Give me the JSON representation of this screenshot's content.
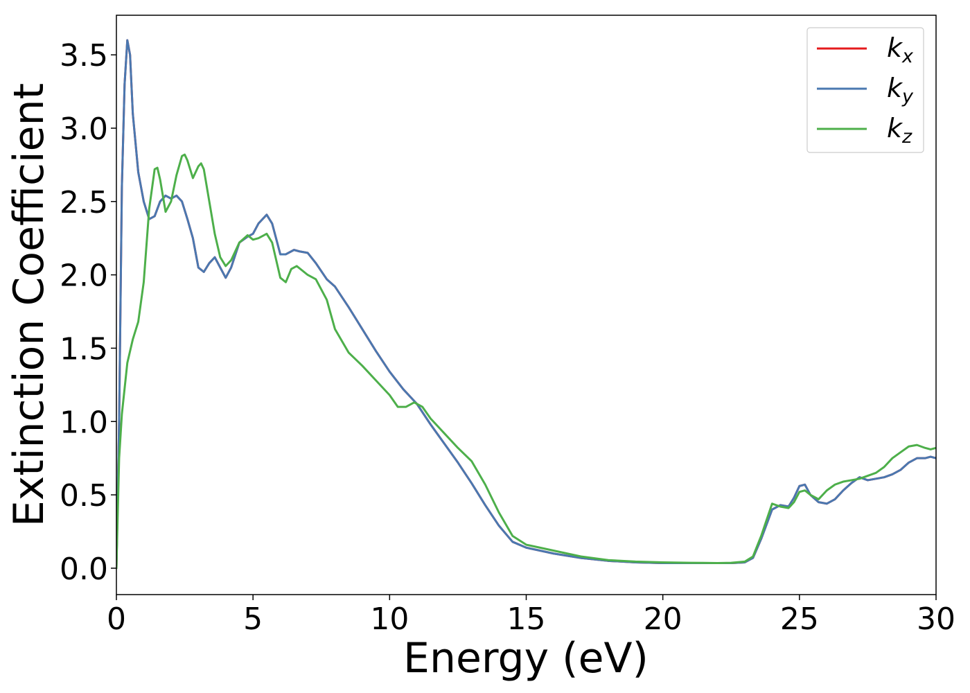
{
  "chart_data": {
    "type": "line",
    "title": "",
    "xlabel": "Energy (eV)",
    "ylabel": "Extinction Coefficient",
    "xlim": [
      0,
      30
    ],
    "ylim": [
      -0.18,
      3.77
    ],
    "xticks": [
      0,
      5,
      10,
      15,
      20,
      25,
      30
    ],
    "xtick_labels": [
      "0",
      "5",
      "10",
      "15",
      "20",
      "25",
      "30"
    ],
    "yticks": [
      0.0,
      0.5,
      1.0,
      1.5,
      2.0,
      2.5,
      3.0,
      3.5
    ],
    "ytick_labels": [
      "0.0",
      "0.5",
      "1.0",
      "1.5",
      "2.0",
      "2.5",
      "3.0",
      "3.5"
    ],
    "grid": false,
    "legend_position": "top-right",
    "series": [
      {
        "name": "k",
        "subscript": "x",
        "color": "#e41a1c",
        "x": [
          0,
          0.1,
          0.2,
          0.3,
          0.4,
          0.5,
          0.6,
          0.8,
          1.0,
          1.2,
          1.4,
          1.6,
          1.8,
          2.0,
          2.2,
          2.4,
          2.6,
          2.8,
          3.0,
          3.2,
          3.4,
          3.6,
          3.8,
          4.0,
          4.2,
          4.5,
          4.8,
          5.0,
          5.2,
          5.5,
          5.7,
          6.0,
          6.2,
          6.5,
          6.7,
          7.0,
          7.3,
          7.7,
          8.0,
          8.5,
          9.0,
          9.5,
          10.0,
          10.5,
          11.0,
          11.5,
          12.0,
          12.5,
          13.0,
          13.5,
          14.0,
          14.5,
          15.0,
          15.5,
          16.0,
          17.0,
          18.0,
          19.0,
          20.0,
          21.0,
          22.0,
          22.5,
          23.0,
          23.3,
          23.6,
          24.0,
          24.3,
          24.6,
          24.8,
          25.0,
          25.2,
          25.4,
          25.7,
          26.0,
          26.3,
          26.6,
          26.9,
          27.2,
          27.5,
          27.8,
          28.1,
          28.4,
          28.7,
          29.0,
          29.3,
          29.6,
          29.8,
          30.0
        ],
        "values": [
          0.0,
          1.0,
          2.6,
          3.3,
          3.6,
          3.5,
          3.1,
          2.7,
          2.5,
          2.38,
          2.4,
          2.5,
          2.54,
          2.52,
          2.54,
          2.5,
          2.38,
          2.25,
          2.05,
          2.02,
          2.08,
          2.12,
          2.05,
          1.98,
          2.05,
          2.22,
          2.26,
          2.28,
          2.35,
          2.41,
          2.35,
          2.14,
          2.14,
          2.17,
          2.16,
          2.15,
          2.08,
          1.97,
          1.92,
          1.78,
          1.63,
          1.48,
          1.34,
          1.22,
          1.12,
          0.98,
          0.85,
          0.72,
          0.58,
          0.43,
          0.29,
          0.18,
          0.14,
          0.12,
          0.1,
          0.07,
          0.05,
          0.04,
          0.035,
          0.035,
          0.035,
          0.035,
          0.04,
          0.07,
          0.2,
          0.4,
          0.43,
          0.42,
          0.48,
          0.56,
          0.57,
          0.5,
          0.45,
          0.44,
          0.47,
          0.53,
          0.58,
          0.62,
          0.6,
          0.61,
          0.62,
          0.64,
          0.67,
          0.72,
          0.75,
          0.75,
          0.76,
          0.75
        ]
      },
      {
        "name": "k",
        "subscript": "y",
        "color": "#4a78b0",
        "x": [
          0,
          0.1,
          0.2,
          0.3,
          0.4,
          0.5,
          0.6,
          0.8,
          1.0,
          1.2,
          1.4,
          1.6,
          1.8,
          2.0,
          2.2,
          2.4,
          2.6,
          2.8,
          3.0,
          3.2,
          3.4,
          3.6,
          3.8,
          4.0,
          4.2,
          4.5,
          4.8,
          5.0,
          5.2,
          5.5,
          5.7,
          6.0,
          6.2,
          6.5,
          6.7,
          7.0,
          7.3,
          7.7,
          8.0,
          8.5,
          9.0,
          9.5,
          10.0,
          10.5,
          11.0,
          11.5,
          12.0,
          12.5,
          13.0,
          13.5,
          14.0,
          14.5,
          15.0,
          15.5,
          16.0,
          17.0,
          18.0,
          19.0,
          20.0,
          21.0,
          22.0,
          22.5,
          23.0,
          23.3,
          23.6,
          24.0,
          24.3,
          24.6,
          24.8,
          25.0,
          25.2,
          25.4,
          25.7,
          26.0,
          26.3,
          26.6,
          26.9,
          27.2,
          27.5,
          27.8,
          28.1,
          28.4,
          28.7,
          29.0,
          29.3,
          29.6,
          29.8,
          30.0
        ],
        "values": [
          0.0,
          1.0,
          2.6,
          3.3,
          3.6,
          3.5,
          3.1,
          2.7,
          2.5,
          2.38,
          2.4,
          2.5,
          2.54,
          2.52,
          2.54,
          2.5,
          2.38,
          2.25,
          2.05,
          2.02,
          2.08,
          2.12,
          2.05,
          1.98,
          2.05,
          2.22,
          2.26,
          2.28,
          2.35,
          2.41,
          2.35,
          2.14,
          2.14,
          2.17,
          2.16,
          2.15,
          2.08,
          1.97,
          1.92,
          1.78,
          1.63,
          1.48,
          1.34,
          1.22,
          1.12,
          0.98,
          0.85,
          0.72,
          0.58,
          0.43,
          0.29,
          0.18,
          0.14,
          0.12,
          0.1,
          0.07,
          0.05,
          0.04,
          0.035,
          0.035,
          0.035,
          0.035,
          0.04,
          0.07,
          0.2,
          0.4,
          0.43,
          0.42,
          0.48,
          0.56,
          0.57,
          0.5,
          0.45,
          0.44,
          0.47,
          0.53,
          0.58,
          0.62,
          0.6,
          0.61,
          0.62,
          0.64,
          0.67,
          0.72,
          0.75,
          0.75,
          0.76,
          0.75
        ]
      },
      {
        "name": "k",
        "subscript": "z",
        "color": "#4daf4a",
        "x": [
          0,
          0.1,
          0.2,
          0.4,
          0.6,
          0.8,
          1.0,
          1.2,
          1.4,
          1.5,
          1.6,
          1.8,
          2.0,
          2.2,
          2.4,
          2.5,
          2.6,
          2.8,
          3.0,
          3.1,
          3.2,
          3.4,
          3.6,
          3.8,
          4.0,
          4.2,
          4.5,
          4.8,
          5.0,
          5.2,
          5.5,
          5.7,
          6.0,
          6.2,
          6.4,
          6.6,
          6.8,
          7.0,
          7.3,
          7.7,
          8.0,
          8.5,
          9.0,
          9.5,
          10.0,
          10.3,
          10.6,
          10.9,
          11.2,
          11.5,
          12.0,
          12.5,
          13.0,
          13.5,
          14.0,
          14.5,
          15.0,
          15.5,
          16.0,
          17.0,
          18.0,
          19.0,
          20.0,
          21.0,
          22.0,
          22.5,
          23.0,
          23.3,
          23.6,
          24.0,
          24.3,
          24.6,
          24.8,
          25.0,
          25.2,
          25.4,
          25.7,
          26.0,
          26.3,
          26.6,
          26.9,
          27.2,
          27.5,
          27.8,
          28.1,
          28.4,
          28.7,
          29.0,
          29.3,
          29.6,
          29.8,
          30.0
        ],
        "values": [
          0.0,
          0.75,
          1.05,
          1.4,
          1.56,
          1.68,
          1.95,
          2.45,
          2.72,
          2.73,
          2.65,
          2.43,
          2.5,
          2.68,
          2.81,
          2.82,
          2.78,
          2.66,
          2.74,
          2.76,
          2.72,
          2.5,
          2.28,
          2.12,
          2.06,
          2.1,
          2.22,
          2.27,
          2.24,
          2.25,
          2.28,
          2.22,
          1.98,
          1.95,
          2.04,
          2.06,
          2.03,
          2.0,
          1.97,
          1.83,
          1.63,
          1.47,
          1.38,
          1.28,
          1.18,
          1.1,
          1.1,
          1.13,
          1.1,
          1.02,
          0.92,
          0.82,
          0.73,
          0.57,
          0.38,
          0.22,
          0.16,
          0.14,
          0.12,
          0.08,
          0.055,
          0.045,
          0.04,
          0.037,
          0.035,
          0.037,
          0.045,
          0.08,
          0.22,
          0.44,
          0.42,
          0.41,
          0.45,
          0.52,
          0.53,
          0.5,
          0.47,
          0.53,
          0.57,
          0.59,
          0.6,
          0.61,
          0.63,
          0.65,
          0.69,
          0.75,
          0.79,
          0.83,
          0.84,
          0.82,
          0.81,
          0.82
        ]
      }
    ]
  }
}
